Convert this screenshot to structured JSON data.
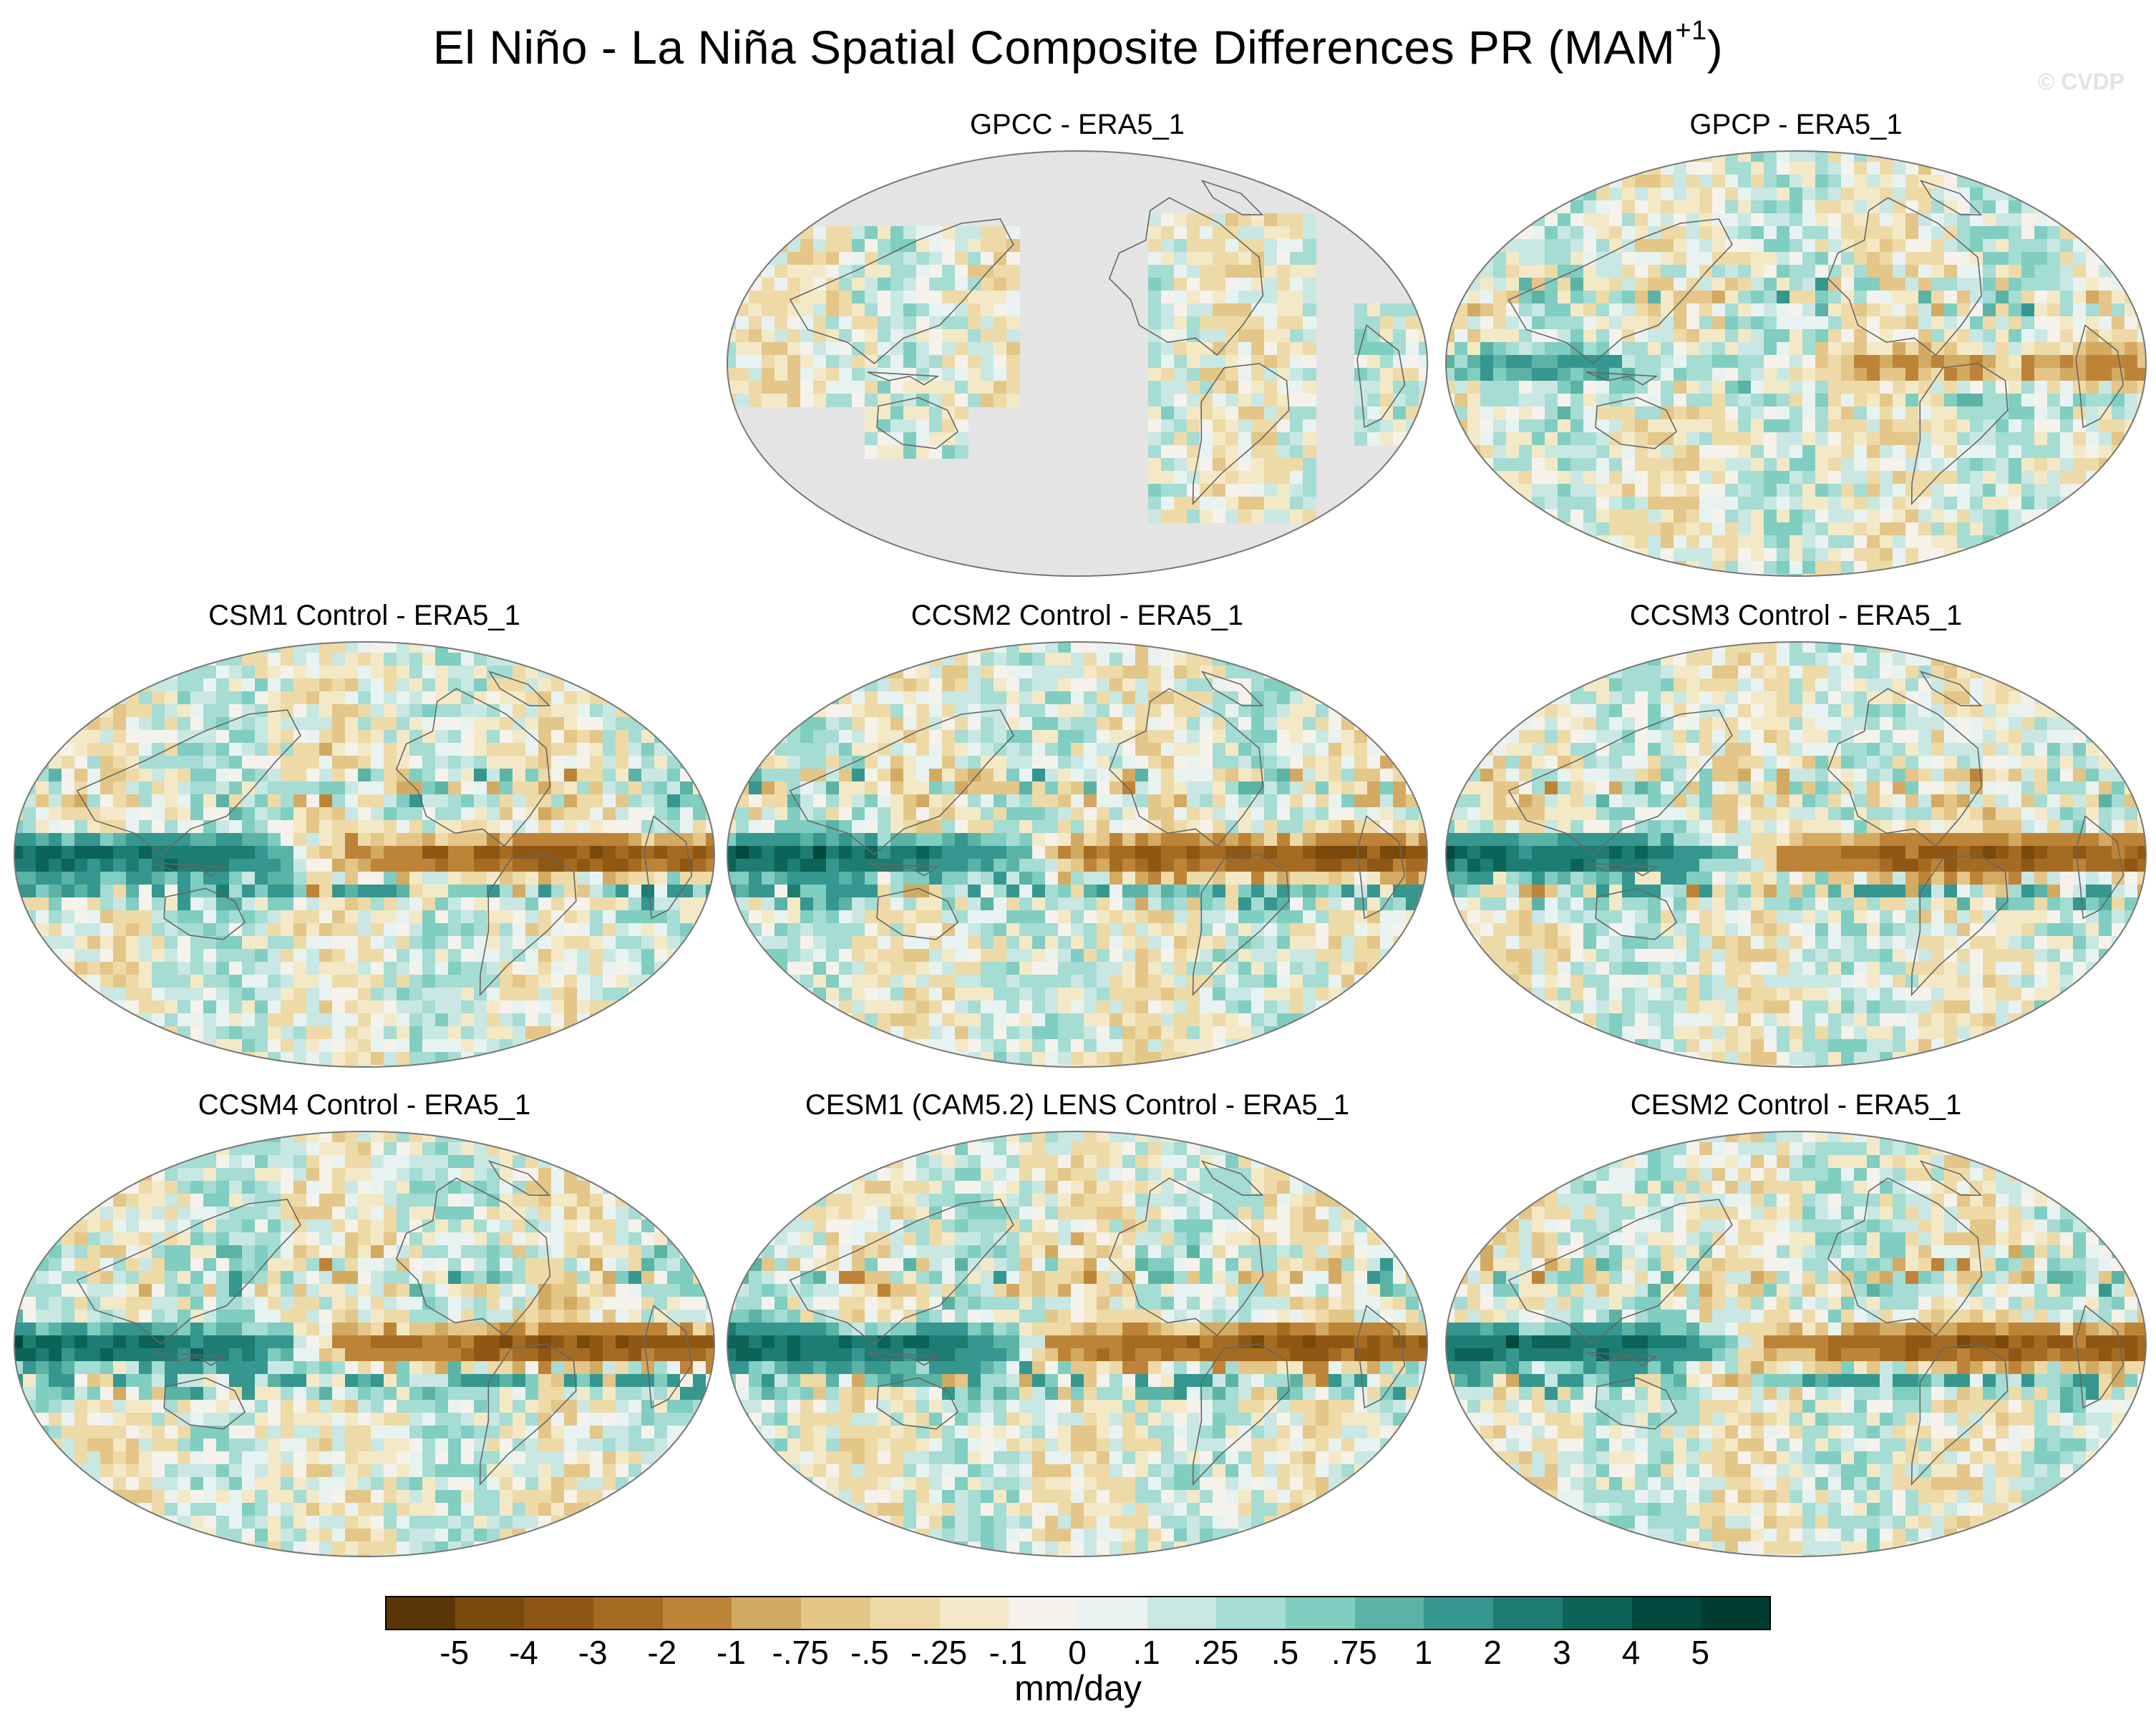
{
  "figure": {
    "title_main": "El Niño - La Niña Spatial Composite Differences PR (MAM",
    "title_sup": "+1",
    "title_end": ")",
    "watermark": "© CVDP"
  },
  "panels": [
    {
      "id": "gpcc",
      "title": "GPCC - ERA5_1",
      "variant": "land",
      "seed": 3
    },
    {
      "id": "gpcp",
      "title": "GPCP - ERA5_1",
      "variant": "obs",
      "seed": 11
    },
    {
      "id": "csm1",
      "title": "CSM1 Control - ERA5_1",
      "variant": "model",
      "seed": 21
    },
    {
      "id": "ccsm2",
      "title": "CCSM2 Control - ERA5_1",
      "variant": "model",
      "seed": 37
    },
    {
      "id": "ccsm3",
      "title": "CCSM3 Control - ERA5_1",
      "variant": "model",
      "seed": 53
    },
    {
      "id": "ccsm4",
      "title": "CCSM4 Control - ERA5_1",
      "variant": "model",
      "seed": 71
    },
    {
      "id": "cesm1",
      "title": "CESM1 (CAM5.2) LENS Control - ERA5_1",
      "variant": "model",
      "seed": 89
    },
    {
      "id": "cesm2",
      "title": "CESM2 Control - ERA5_1",
      "variant": "model",
      "seed": 97
    }
  ],
  "colorbar": {
    "unit": "mm/day",
    "labels": [
      "-5",
      "-4",
      "-3",
      "-2",
      "-1",
      "-.75",
      "-.5",
      "-.25",
      "-.1",
      "0",
      ".1",
      ".25",
      ".5",
      ".75",
      "1",
      "2",
      "3",
      "4",
      "5"
    ],
    "colors": [
      "#5a3505",
      "#7a4a0c",
      "#8f5714",
      "#a66b22",
      "#bd8438",
      "#d3aa62",
      "#e3c688",
      "#eedaa7",
      "#f4e9c6",
      "#f5f2ec",
      "#e8f3f1",
      "#c9e8e3",
      "#a5dcd3",
      "#80cdc1",
      "#5bb3a6",
      "#35978f",
      "#1d7d73",
      "#0c6358",
      "#01493f",
      "#003c30"
    ]
  }
}
